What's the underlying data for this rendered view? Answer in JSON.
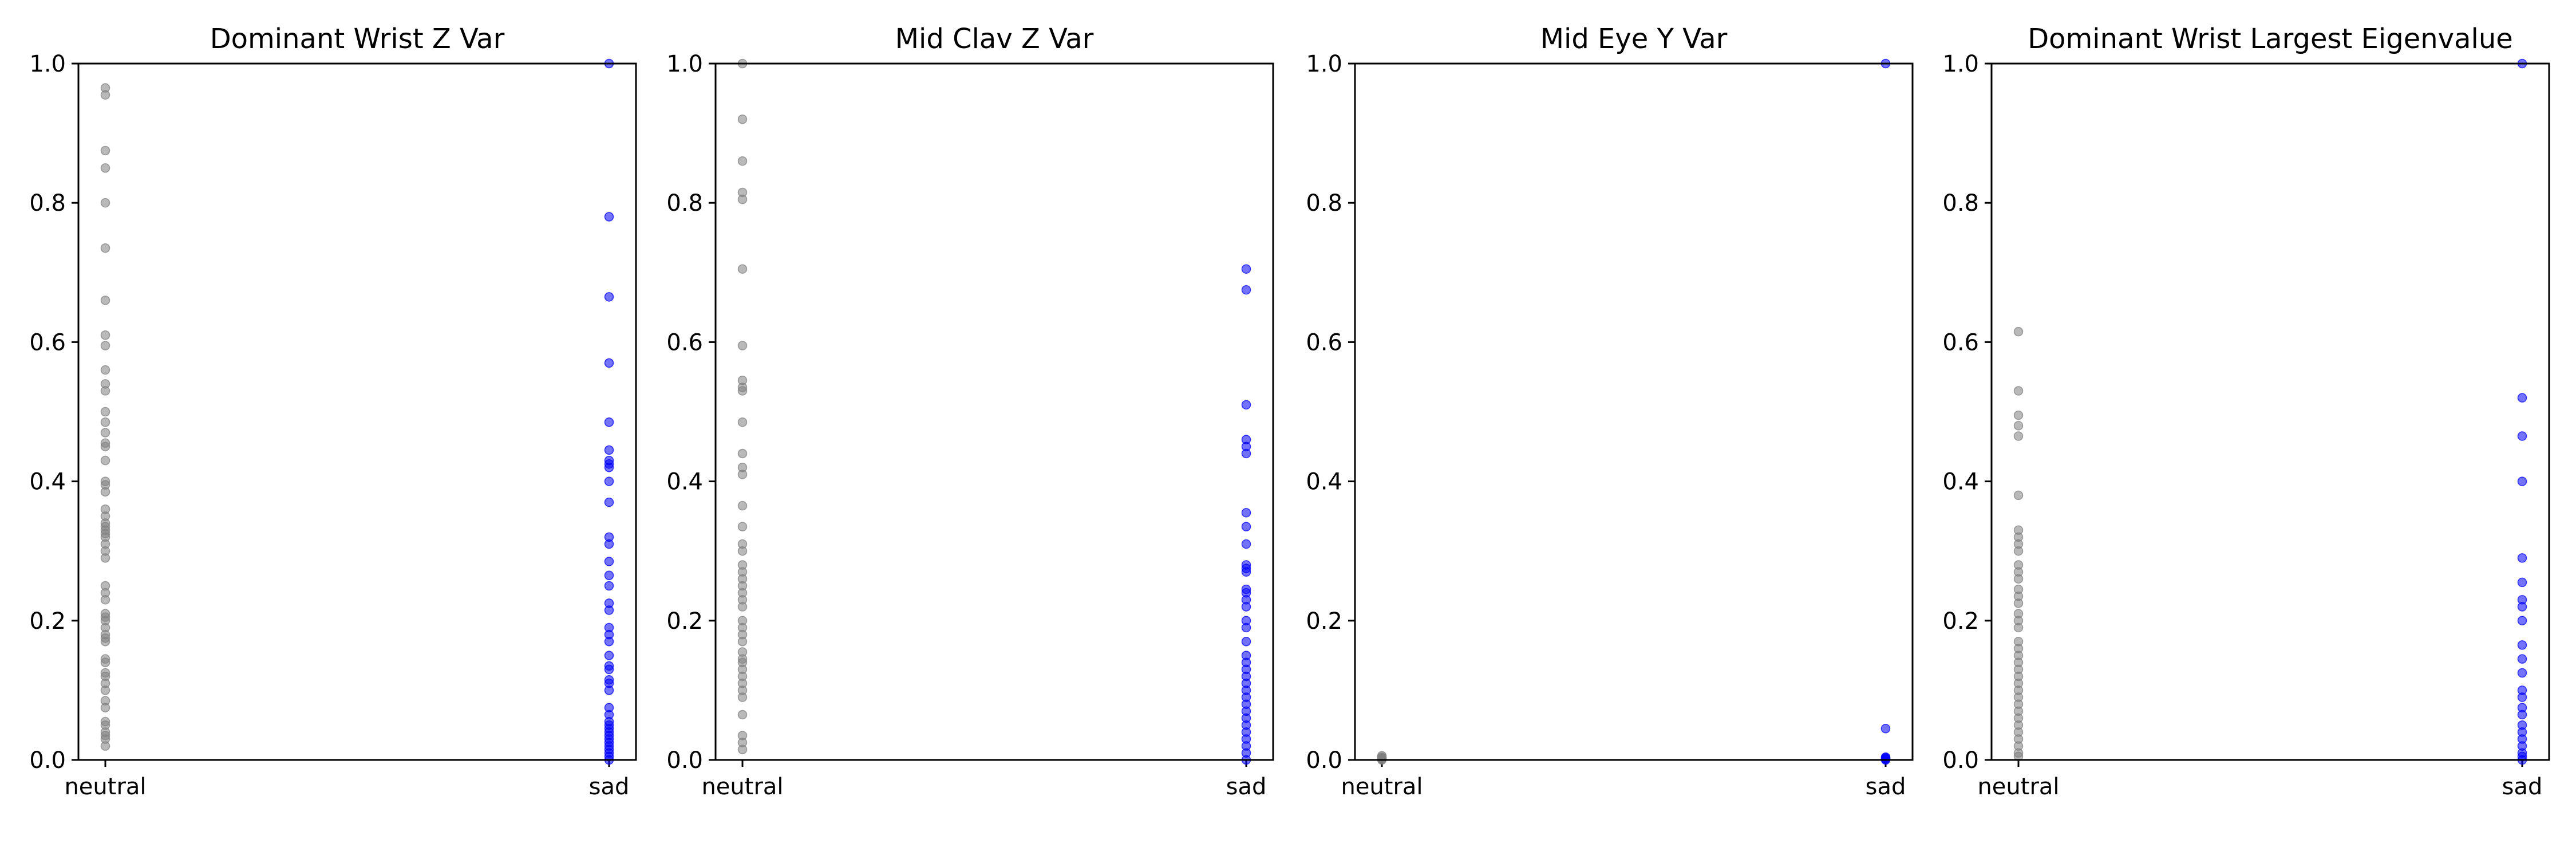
{
  "figure": {
    "background": "#ffffff"
  },
  "colors": {
    "neutral": "#808080",
    "sad": "#0000ff",
    "axes": "#000000"
  },
  "chart_data": [
    {
      "type": "scatter",
      "title": "Dominant Wrist Z Var",
      "categories": [
        "neutral",
        "sad"
      ],
      "ylim": [
        0,
        1
      ],
      "yticks": [
        "0.0",
        "0.2",
        "0.4",
        "0.6",
        "0.8",
        "1.0"
      ],
      "grid": false,
      "series": [
        {
          "category": "neutral",
          "color": "#808080",
          "values": [
            0.965,
            0.955,
            0.875,
            0.85,
            0.8,
            0.735,
            0.66,
            0.61,
            0.595,
            0.56,
            0.54,
            0.53,
            0.5,
            0.485,
            0.47,
            0.455,
            0.45,
            0.43,
            0.4,
            0.395,
            0.385,
            0.36,
            0.35,
            0.34,
            0.335,
            0.33,
            0.325,
            0.32,
            0.31,
            0.3,
            0.29,
            0.25,
            0.24,
            0.23,
            0.21,
            0.205,
            0.2,
            0.19,
            0.18,
            0.175,
            0.17,
            0.145,
            0.14,
            0.125,
            0.12,
            0.11,
            0.1,
            0.085,
            0.075,
            0.055,
            0.05,
            0.04,
            0.035,
            0.03,
            0.02
          ]
        },
        {
          "category": "sad",
          "color": "#0000ff",
          "values": [
            1.0,
            0.78,
            0.665,
            0.57,
            0.485,
            0.445,
            0.43,
            0.425,
            0.42,
            0.4,
            0.37,
            0.32,
            0.31,
            0.285,
            0.265,
            0.25,
            0.225,
            0.215,
            0.19,
            0.18,
            0.17,
            0.15,
            0.135,
            0.13,
            0.115,
            0.11,
            0.1,
            0.075,
            0.065,
            0.055,
            0.05,
            0.045,
            0.04,
            0.035,
            0.03,
            0.025,
            0.02,
            0.015,
            0.01,
            0.005,
            0.0
          ]
        }
      ]
    },
    {
      "type": "scatter",
      "title": "Mid Clav Z Var",
      "categories": [
        "neutral",
        "sad"
      ],
      "ylim": [
        0,
        1
      ],
      "yticks": [
        "0.0",
        "0.2",
        "0.4",
        "0.6",
        "0.8",
        "1.0"
      ],
      "grid": false,
      "series": [
        {
          "category": "neutral",
          "color": "#808080",
          "values": [
            1.0,
            0.92,
            0.86,
            0.815,
            0.805,
            0.705,
            0.595,
            0.545,
            0.535,
            0.53,
            0.485,
            0.44,
            0.42,
            0.41,
            0.365,
            0.335,
            0.31,
            0.3,
            0.28,
            0.27,
            0.26,
            0.25,
            0.24,
            0.23,
            0.22,
            0.2,
            0.19,
            0.18,
            0.17,
            0.155,
            0.145,
            0.14,
            0.13,
            0.12,
            0.11,
            0.1,
            0.09,
            0.065,
            0.035,
            0.025,
            0.015
          ]
        },
        {
          "category": "sad",
          "color": "#0000ff",
          "values": [
            0.705,
            0.675,
            0.51,
            0.46,
            0.45,
            0.44,
            0.355,
            0.335,
            0.31,
            0.28,
            0.275,
            0.27,
            0.245,
            0.24,
            0.23,
            0.22,
            0.2,
            0.19,
            0.17,
            0.15,
            0.14,
            0.13,
            0.12,
            0.11,
            0.1,
            0.09,
            0.08,
            0.07,
            0.06,
            0.05,
            0.04,
            0.03,
            0.02,
            0.01,
            0.0
          ]
        }
      ]
    },
    {
      "type": "scatter",
      "title": "Mid Eye Y Var",
      "categories": [
        "neutral",
        "sad"
      ],
      "ylim": [
        0,
        1
      ],
      "yticks": [
        "0.0",
        "0.2",
        "0.4",
        "0.6",
        "0.8",
        "1.0"
      ],
      "grid": false,
      "series": [
        {
          "category": "neutral",
          "color": "#808080",
          "values": [
            0.006,
            0.004,
            0.003,
            0.002,
            0.001,
            0.0
          ]
        },
        {
          "category": "sad",
          "color": "#0000ff",
          "values": [
            1.0,
            0.045,
            0.004,
            0.003,
            0.002,
            0.001,
            0.0
          ]
        }
      ]
    },
    {
      "type": "scatter",
      "title": "Dominant Wrist Largest Eigenvalue",
      "categories": [
        "neutral",
        "sad"
      ],
      "ylim": [
        0,
        1
      ],
      "yticks": [
        "0.0",
        "0.2",
        "0.4",
        "0.6",
        "0.8",
        "1.0"
      ],
      "grid": false,
      "series": [
        {
          "category": "neutral",
          "color": "#808080",
          "values": [
            0.615,
            0.53,
            0.495,
            0.48,
            0.465,
            0.38,
            0.33,
            0.32,
            0.31,
            0.3,
            0.28,
            0.27,
            0.26,
            0.245,
            0.235,
            0.225,
            0.21,
            0.2,
            0.19,
            0.17,
            0.16,
            0.15,
            0.14,
            0.13,
            0.12,
            0.11,
            0.1,
            0.09,
            0.08,
            0.07,
            0.06,
            0.05,
            0.04,
            0.03,
            0.02,
            0.01,
            0.005
          ]
        },
        {
          "category": "sad",
          "color": "#0000ff",
          "values": [
            1.0,
            0.52,
            0.465,
            0.4,
            0.29,
            0.255,
            0.23,
            0.22,
            0.2,
            0.165,
            0.145,
            0.125,
            0.1,
            0.09,
            0.075,
            0.065,
            0.05,
            0.04,
            0.03,
            0.02,
            0.01,
            0.005,
            0.0
          ]
        }
      ]
    }
  ]
}
